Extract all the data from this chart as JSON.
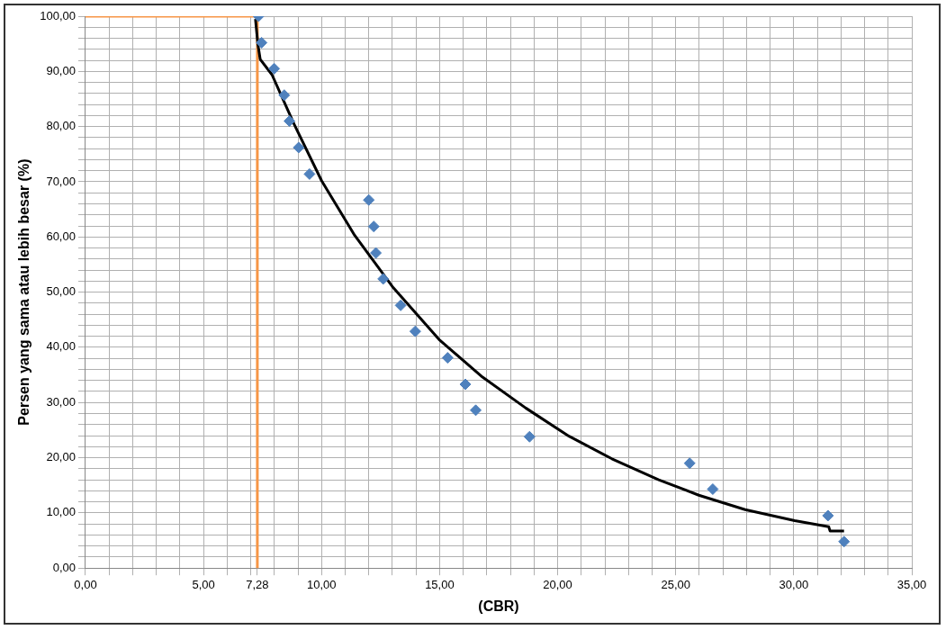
{
  "chart_data": {
    "type": "scatter",
    "xlabel": "(CBR)",
    "ylabel": "Persen yang sama atau lebih besar (%)",
    "xlim": [
      0,
      35
    ],
    "xticks": [
      {
        "value": 0,
        "label": "0,00"
      },
      {
        "value": 1,
        "label": null
      },
      {
        "value": 2,
        "label": null
      },
      {
        "value": 3,
        "label": null
      },
      {
        "value": 4,
        "label": null
      },
      {
        "value": 5,
        "label": "5,00"
      },
      {
        "value": 6,
        "label": null
      },
      {
        "value": 7,
        "label": null
      },
      {
        "value": 7.28,
        "label": "7,28"
      },
      {
        "value": 8,
        "label": null
      },
      {
        "value": 9,
        "label": null
      },
      {
        "value": 10,
        "label": "10,00"
      },
      {
        "value": 11,
        "label": null
      },
      {
        "value": 12,
        "label": null
      },
      {
        "value": 13,
        "label": null
      },
      {
        "value": 14,
        "label": null
      },
      {
        "value": 15,
        "label": "15,00"
      },
      {
        "value": 16,
        "label": null
      },
      {
        "value": 17,
        "label": null
      },
      {
        "value": 18,
        "label": null
      },
      {
        "value": 19,
        "label": null
      },
      {
        "value": 20,
        "label": "20,00"
      },
      {
        "value": 21,
        "label": null
      },
      {
        "value": 22,
        "label": null
      },
      {
        "value": 23,
        "label": null
      },
      {
        "value": 24,
        "label": null
      },
      {
        "value": 25,
        "label": "25,00"
      },
      {
        "value": 26,
        "label": null
      },
      {
        "value": 27,
        "label": null
      },
      {
        "value": 28,
        "label": null
      },
      {
        "value": 29,
        "label": null
      },
      {
        "value": 30,
        "label": "30,00"
      },
      {
        "value": 31,
        "label": null
      },
      {
        "value": 32,
        "label": null
      },
      {
        "value": 33,
        "label": null
      },
      {
        "value": 34,
        "label": null
      },
      {
        "value": 35,
        "label": "35,00"
      }
    ],
    "ylim": [
      0,
      100
    ],
    "yticks": [
      {
        "value": 0,
        "label": "0,00"
      },
      {
        "value": 2,
        "label": null
      },
      {
        "value": 4,
        "label": null
      },
      {
        "value": 6,
        "label": null
      },
      {
        "value": 8,
        "label": null
      },
      {
        "value": 10,
        "label": "10,00"
      },
      {
        "value": 12,
        "label": null
      },
      {
        "value": 14,
        "label": null
      },
      {
        "value": 16,
        "label": null
      },
      {
        "value": 18,
        "label": null
      },
      {
        "value": 20,
        "label": "20,00"
      },
      {
        "value": 22,
        "label": null
      },
      {
        "value": 24,
        "label": null
      },
      {
        "value": 26,
        "label": null
      },
      {
        "value": 28,
        "label": null
      },
      {
        "value": 30,
        "label": "30,00"
      },
      {
        "value": 32,
        "label": null
      },
      {
        "value": 34,
        "label": null
      },
      {
        "value": 36,
        "label": null
      },
      {
        "value": 38,
        "label": null
      },
      {
        "value": 40,
        "label": "40,00"
      },
      {
        "value": 42,
        "label": null
      },
      {
        "value": 44,
        "label": null
      },
      {
        "value": 46,
        "label": null
      },
      {
        "value": 48,
        "label": null
      },
      {
        "value": 50,
        "label": "50,00"
      },
      {
        "value": 52,
        "label": null
      },
      {
        "value": 54,
        "label": null
      },
      {
        "value": 56,
        "label": null
      },
      {
        "value": 58,
        "label": null
      },
      {
        "value": 60,
        "label": "60,00"
      },
      {
        "value": 62,
        "label": null
      },
      {
        "value": 64,
        "label": null
      },
      {
        "value": 66,
        "label": null
      },
      {
        "value": 68,
        "label": null
      },
      {
        "value": 70,
        "label": "70,00"
      },
      {
        "value": 72,
        "label": null
      },
      {
        "value": 74,
        "label": null
      },
      {
        "value": 76,
        "label": null
      },
      {
        "value": 78,
        "label": null
      },
      {
        "value": 80,
        "label": "80,00"
      },
      {
        "value": 82,
        "label": null
      },
      {
        "value": 84,
        "label": null
      },
      {
        "value": 86,
        "label": null
      },
      {
        "value": 88,
        "label": null
      },
      {
        "value": 90,
        "label": "90,00"
      },
      {
        "value": 92,
        "label": null
      },
      {
        "value": 94,
        "label": null
      },
      {
        "value": 96,
        "label": null
      },
      {
        "value": 98,
        "label": null
      },
      {
        "value": 100,
        "label": "100,00"
      }
    ],
    "grid": true,
    "legend": false,
    "series": [
      {
        "marker": "diamond",
        "color": "#4f81bd",
        "x": [
          7.33,
          7.46,
          7.99,
          8.42,
          8.64,
          9.03,
          9.49,
          12.0,
          12.21,
          12.3,
          12.61,
          13.35,
          13.97,
          15.34,
          16.09,
          16.53,
          18.81,
          25.59,
          26.57,
          31.45,
          32.13
        ],
        "values": [
          100,
          95.2,
          90.5,
          85.7,
          81.0,
          76.2,
          71.4,
          66.7,
          61.9,
          57.1,
          52.4,
          47.6,
          42.9,
          38.1,
          33.3,
          28.6,
          23.8,
          19.0,
          14.3,
          9.5,
          4.8
        ]
      },
      {
        "type": "line",
        "marker": "none",
        "line_style": "solid",
        "color": "#000000",
        "x": [
          7.2,
          7.3,
          7.4,
          7.9,
          8.84,
          10.0,
          11.4,
          13.0,
          14.98,
          16.82,
          18.65,
          20.48,
          22.3,
          24.28,
          25.98,
          27.94,
          30.04,
          31.48,
          31.54,
          32.13
        ],
        "values": [
          99.5,
          95,
          92.2,
          89.4,
          80.4,
          70.2,
          60.3,
          51.0,
          41.4,
          34.6,
          29.0,
          23.9,
          19.8,
          16.0,
          13.2,
          10.6,
          8.6,
          7.5,
          6.7,
          6.7
        ]
      },
      {
        "type": "line",
        "marker": "none",
        "line_style": "solid",
        "color": "#f79646",
        "x": [
          0,
          7.28,
          7.28
        ],
        "values": [
          100,
          100,
          0
        ]
      }
    ]
  }
}
